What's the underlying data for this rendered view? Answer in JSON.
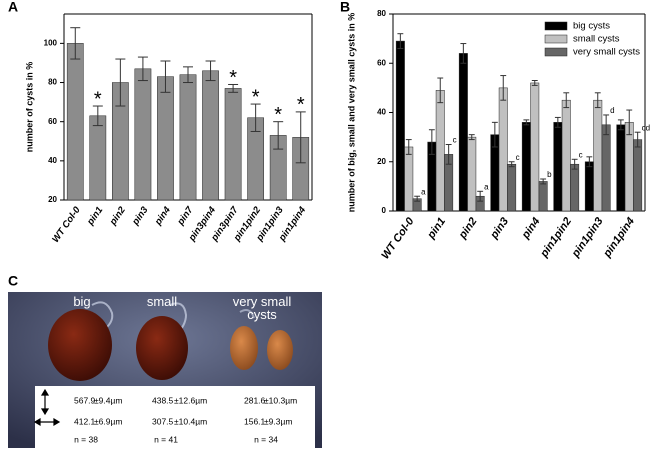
{
  "chart_data": [
    {
      "type": "bar",
      "panel_label": "A",
      "ylabel": "number of cysts in %",
      "categories": [
        "WT Col-0",
        "pin1",
        "pin2",
        "pin3",
        "pin4",
        "pin7",
        "pin3pin4",
        "pin3pin7",
        "pin1pin2",
        "pin1pin3",
        "pin1pin4"
      ],
      "values": [
        100,
        63,
        80,
        87,
        83,
        84,
        86,
        77,
        62,
        53,
        52
      ],
      "errors": [
        8,
        5,
        12,
        6,
        8,
        4,
        5,
        2,
        7,
        7,
        13
      ],
      "annotations": [
        null,
        "*",
        null,
        null,
        null,
        null,
        null,
        "*",
        "*",
        "*",
        "*"
      ],
      "color": "#8c8c8c",
      "ylim": [
        20,
        115
      ],
      "yticks": [
        20,
        40,
        60,
        80,
        100
      ]
    },
    {
      "type": "bar",
      "panel_label": "B",
      "ylabel": "number of big, small and very small cysts in %",
      "categories": [
        "WT Col-0",
        "pin1",
        "pin2",
        "pin3",
        "pin4",
        "pin1pin2",
        "pin1pin3",
        "pin1pin4"
      ],
      "series": [
        {
          "name": "big cysts",
          "color": "#000000",
          "values": [
            69,
            28,
            64,
            31,
            36,
            36,
            20,
            35
          ],
          "errors": [
            3,
            5,
            4,
            5,
            1,
            2,
            2,
            2
          ]
        },
        {
          "name": "small cysts",
          "color": "#c0c0c0",
          "values": [
            26,
            49,
            30,
            50,
            52,
            45,
            45,
            36
          ],
          "errors": [
            3,
            5,
            1,
            5,
            1,
            3,
            3,
            5
          ]
        },
        {
          "name": "very small cysts",
          "color": "#666666",
          "values": [
            5,
            23,
            6,
            19,
            12,
            19,
            35,
            29
          ],
          "errors": [
            1,
            4,
            2,
            1,
            1,
            2,
            4,
            3
          ],
          "annotations": [
            "a",
            "c",
            "a",
            "c",
            "b",
            "c",
            "d",
            "cd"
          ]
        }
      ],
      "ylim": [
        0,
        80
      ],
      "yticks": [
        0,
        20,
        40,
        60,
        80
      ],
      "legend": "upper right"
    }
  ],
  "panel_c": {
    "panel_label": "C",
    "labels": [
      "big",
      "small",
      "very small\ncysts"
    ],
    "rows": [
      [
        "567.9",
        "±9.4µm",
        "438.5",
        "±12.6µm",
        "281.6",
        "±10.3µm"
      ],
      [
        "412.1",
        "±6.9µm",
        "307.5",
        "±10.4µm",
        "156.1",
        "±9.3µm"
      ]
    ],
    "n": [
      "n = 38",
      "n = 41",
      "n = 34"
    ]
  }
}
